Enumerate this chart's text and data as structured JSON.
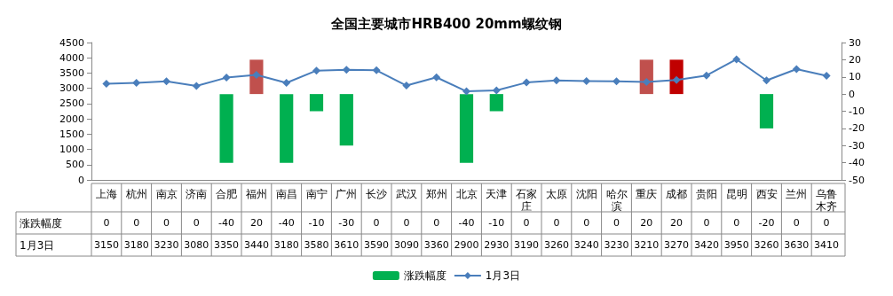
{
  "chart_data": {
    "type": "line",
    "title": "全国主要城市HRB400 20mm螺纹钢",
    "categories": [
      "上海",
      "杭州",
      "南京",
      "济南",
      "合肥",
      "福州",
      "南昌",
      "南宁",
      "广州",
      "长沙",
      "武汉",
      "郑州",
      "北京",
      "天津",
      "石家庄",
      "太原",
      "沈阳",
      "哈尔滨",
      "重庆",
      "成都",
      "贵阳",
      "昆明",
      "西安",
      "兰州",
      "乌鲁木齐"
    ],
    "series": [
      {
        "name": "涨跌幅度",
        "type": "bar",
        "axis": "y2",
        "color": "#00b050",
        "colors": [
          "#00b050",
          "#00b050",
          "#00b050",
          "#00b050",
          "#00b050",
          "#c0504d",
          "#00b050",
          "#00b050",
          "#00b050",
          "#00b050",
          "#00b050",
          "#00b050",
          "#00b050",
          "#00b050",
          "#00b050",
          "#00b050",
          "#00b050",
          "#00b050",
          "#c0504d",
          "#c00000",
          "#00b050",
          "#00b050",
          "#00b050",
          "#00b050",
          "#00b050"
        ],
        "values": [
          0,
          0,
          0,
          0,
          -40,
          20,
          -40,
          -10,
          -30,
          0,
          0,
          0,
          -40,
          -10,
          0,
          0,
          0,
          0,
          20,
          20,
          0,
          0,
          -20,
          0,
          0
        ]
      },
      {
        "name": "1月3日",
        "color": "#4a7ebb",
        "values": [
          3150,
          3180,
          3230,
          3080,
          3350,
          3440,
          3180,
          3580,
          3610,
          3590,
          3090,
          3360,
          2900,
          2930,
          3190,
          3260,
          3240,
          3230,
          3210,
          3270,
          3420,
          3950,
          3260,
          3630,
          3410
        ]
      }
    ],
    "ylim": [
      0,
      4500
    ],
    "yticks": [
      0,
      500,
      1000,
      1500,
      2000,
      2500,
      3000,
      3500,
      4000,
      4500
    ],
    "y2lim": [
      -50,
      30
    ],
    "y2ticks": [
      -50,
      -40,
      -30,
      -20,
      -10,
      0,
      10,
      20,
      30
    ],
    "marker": "diamond",
    "legend": "bottom",
    "data_labels": true
  }
}
